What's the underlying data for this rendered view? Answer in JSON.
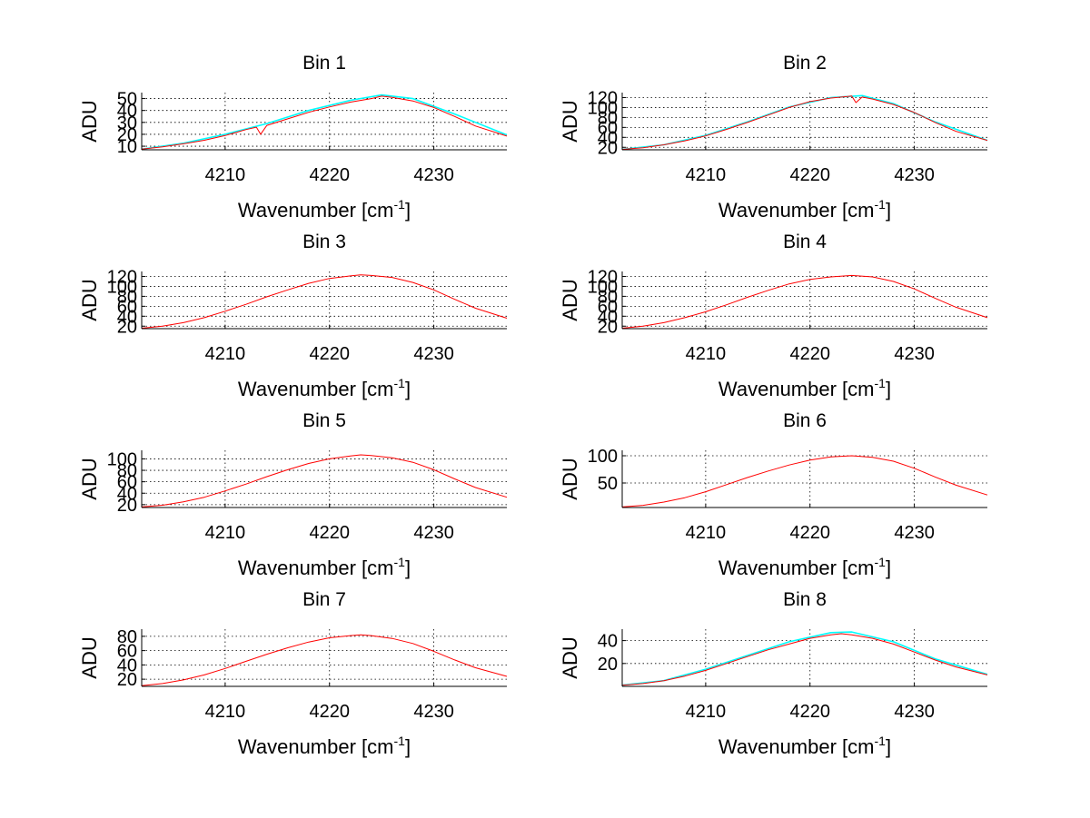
{
  "figure": {
    "background": "#ffffff"
  },
  "colors": {
    "primary": "#ff0000",
    "secondary": "#00ffff",
    "grid": "#000000",
    "axis": "#000000"
  },
  "chart_data": [
    {
      "type": "line",
      "title": "Bin 1",
      "xlabel": "Wavenumber [cm",
      "xlabel_sup": "-1",
      "xlabel_end": "]",
      "ylabel": "ADU",
      "xlim": [
        4202,
        4237
      ],
      "ylim": [
        7,
        55
      ],
      "xticks": [
        4210,
        4220,
        4230
      ],
      "yticks": [
        10,
        20,
        30,
        40,
        50
      ],
      "series": [
        {
          "name": "spectrum (red)",
          "color": "#ff0000",
          "x": [
            4202,
            4204,
            4206,
            4208,
            4210,
            4212,
            4213,
            4213.4,
            4214,
            4216,
            4218,
            4220,
            4222,
            4224,
            4225,
            4226,
            4228,
            4230,
            4232,
            4234,
            4237
          ],
          "y": [
            7.5,
            9.5,
            12,
            15,
            19,
            24,
            26,
            20,
            27.5,
            33,
            38.5,
            43,
            47,
            50,
            52,
            51,
            48,
            42.5,
            35,
            27,
            18.5
          ]
        },
        {
          "name": "spectrum (cyan)",
          "color": "#00ffff",
          "x": [
            4202,
            4206,
            4210,
            4214,
            4218,
            4222,
            4225,
            4228,
            4232,
            4237
          ],
          "y": [
            7.5,
            12.5,
            20,
            29,
            40,
            48.5,
            53,
            50,
            37,
            19.5
          ]
        }
      ]
    },
    {
      "type": "line",
      "title": "Bin 2",
      "xlabel": "Wavenumber [cm",
      "xlabel_sup": "-1",
      "xlabel_end": "]",
      "ylabel": "ADU",
      "xlim": [
        4202,
        4237
      ],
      "ylim": [
        15,
        130
      ],
      "xticks": [
        4210,
        4220,
        4230
      ],
      "yticks": [
        20,
        40,
        60,
        80,
        100,
        120
      ],
      "series": [
        {
          "name": "spectrum (red)",
          "color": "#ff0000",
          "x": [
            4202,
            4204,
            4206,
            4208,
            4210,
            4212,
            4214,
            4216,
            4218,
            4220,
            4222,
            4223.5,
            4224,
            4224.4,
            4225,
            4226,
            4228,
            4230,
            4232,
            4234,
            4237
          ],
          "y": [
            16,
            19,
            25,
            33,
            43,
            56,
            70,
            85,
            100,
            112,
            119,
            122,
            123,
            110,
            121,
            117,
            106,
            90,
            70,
            52,
            34
          ]
        },
        {
          "name": "spectrum (cyan)",
          "color": "#00ffff",
          "x": [
            4202,
            4206,
            4210,
            4214,
            4218,
            4222,
            4225,
            4228,
            4232,
            4237
          ],
          "y": [
            16,
            25,
            44,
            71,
            101,
            120,
            124,
            108,
            71,
            34
          ]
        }
      ]
    },
    {
      "type": "line",
      "title": "Bin 3",
      "xlabel": "Wavenumber [cm",
      "xlabel_sup": "-1",
      "xlabel_end": "]",
      "ylabel": "ADU",
      "xlim": [
        4202,
        4237
      ],
      "ylim": [
        15,
        130
      ],
      "xticks": [
        4210,
        4220,
        4230
      ],
      "yticks": [
        20,
        40,
        60,
        80,
        100,
        120
      ],
      "series": [
        {
          "name": "spectrum (red)",
          "color": "#ff0000",
          "x": [
            4202,
            4204,
            4206,
            4208,
            4210,
            4212,
            4214,
            4216,
            4218,
            4220,
            4222,
            4223,
            4224,
            4226,
            4228,
            4230,
            4232,
            4234,
            4237
          ],
          "y": [
            16,
            20,
            27,
            37,
            50,
            64,
            79,
            93,
            106,
            116,
            121,
            123,
            122,
            118,
            108,
            93,
            74,
            56,
            36
          ]
        }
      ]
    },
    {
      "type": "line",
      "title": "Bin 4",
      "xlabel": "Wavenumber [cm",
      "xlabel_sup": "-1",
      "xlabel_end": "]",
      "ylabel": "ADU",
      "xlim": [
        4202,
        4237
      ],
      "ylim": [
        15,
        130
      ],
      "xticks": [
        4210,
        4220,
        4230
      ],
      "yticks": [
        20,
        40,
        60,
        80,
        100,
        120
      ],
      "series": [
        {
          "name": "spectrum (red)",
          "color": "#ff0000",
          "x": [
            4202,
            4204,
            4206,
            4208,
            4210,
            4212,
            4214,
            4216,
            4218,
            4220,
            4222,
            4224,
            4226,
            4228,
            4230,
            4232,
            4234,
            4237
          ],
          "y": [
            16,
            20,
            27,
            37,
            49,
            63,
            78,
            92,
            105,
            114,
            119,
            122,
            119,
            110,
            95,
            76,
            58,
            37
          ]
        }
      ]
    },
    {
      "type": "line",
      "title": "Bin 5",
      "xlabel": "Wavenumber [cm",
      "xlabel_sup": "-1",
      "xlabel_end": "]",
      "ylabel": "ADU",
      "xlim": [
        4202,
        4237
      ],
      "ylim": [
        15,
        115
      ],
      "xticks": [
        4210,
        4220,
        4230
      ],
      "yticks": [
        20,
        40,
        60,
        80,
        100
      ],
      "series": [
        {
          "name": "spectrum (red)",
          "color": "#ff0000",
          "x": [
            4202,
            4204,
            4206,
            4208,
            4210,
            4212,
            4214,
            4216,
            4218,
            4220,
            4222,
            4223,
            4224,
            4226,
            4228,
            4230,
            4232,
            4234,
            4237
          ],
          "y": [
            16,
            19,
            25,
            33,
            44,
            56,
            69,
            81,
            92,
            100,
            105,
            107,
            106,
            102,
            94,
            81,
            65,
            50,
            33
          ]
        }
      ]
    },
    {
      "type": "line",
      "title": "Bin 6",
      "xlabel": "Wavenumber [cm",
      "xlabel_sup": "-1",
      "xlabel_end": "]",
      "ylabel": "ADU",
      "xlim": [
        4202,
        4237
      ],
      "ylim": [
        5,
        110
      ],
      "xticks": [
        4210,
        4220,
        4230
      ],
      "yticks": [
        50,
        100
      ],
      "series": [
        {
          "name": "spectrum (red)",
          "color": "#ff0000",
          "x": [
            4202,
            4204,
            4206,
            4208,
            4210,
            4212,
            4214,
            4216,
            4218,
            4220,
            4222,
            4224,
            4226,
            4228,
            4230,
            4232,
            4234,
            4237
          ],
          "y": [
            6,
            9,
            15,
            23,
            34,
            47,
            60,
            72,
            83,
            92,
            98,
            100,
            97,
            90,
            77,
            61,
            46,
            28
          ]
        }
      ]
    },
    {
      "type": "line",
      "title": "Bin 7",
      "xlabel": "Wavenumber [cm",
      "xlabel_sup": "-1",
      "xlabel_end": "]",
      "ylabel": "ADU",
      "xlim": [
        4202,
        4237
      ],
      "ylim": [
        10,
        90
      ],
      "xticks": [
        4210,
        4220,
        4230
      ],
      "yticks": [
        20,
        40,
        60,
        80
      ],
      "series": [
        {
          "name": "spectrum (red)",
          "color": "#ff0000",
          "x": [
            4202,
            4204,
            4206,
            4208,
            4210,
            4212,
            4214,
            4216,
            4218,
            4220,
            4222,
            4223,
            4224,
            4226,
            4228,
            4230,
            4232,
            4234,
            4237
          ],
          "y": [
            11,
            14,
            19,
            26,
            35,
            45,
            55,
            64,
            72,
            78,
            81,
            82,
            81,
            77,
            70,
            59,
            47,
            36,
            24
          ]
        }
      ]
    },
    {
      "type": "line",
      "title": "Bin 8",
      "xlabel": "Wavenumber [cm",
      "xlabel_sup": "-1",
      "xlabel_end": "]",
      "ylabel": "ADU",
      "xlim": [
        4202,
        4237
      ],
      "ylim": [
        0,
        50
      ],
      "xticks": [
        4210,
        4220,
        4230
      ],
      "yticks": [
        20,
        40
      ],
      "series": [
        {
          "name": "spectrum (red)",
          "color": "#ff0000",
          "x": [
            4202,
            4204,
            4206,
            4208,
            4210,
            4212,
            4214,
            4216,
            4218,
            4220,
            4222,
            4223,
            4224,
            4226,
            4228,
            4230,
            4232,
            4234,
            4237
          ],
          "y": [
            1,
            2.5,
            5,
            9,
            14,
            20,
            26,
            32,
            37,
            42,
            45,
            46,
            45,
            42,
            37,
            30,
            23,
            17,
            10
          ]
        },
        {
          "name": "spectrum (cyan)",
          "color": "#00ffff",
          "x": [
            4202,
            4206,
            4210,
            4214,
            4218,
            4222,
            4224,
            4228,
            4232,
            4237
          ],
          "y": [
            1,
            5,
            15,
            27,
            39,
            47,
            47.5,
            39,
            24,
            10.5
          ]
        }
      ]
    }
  ]
}
